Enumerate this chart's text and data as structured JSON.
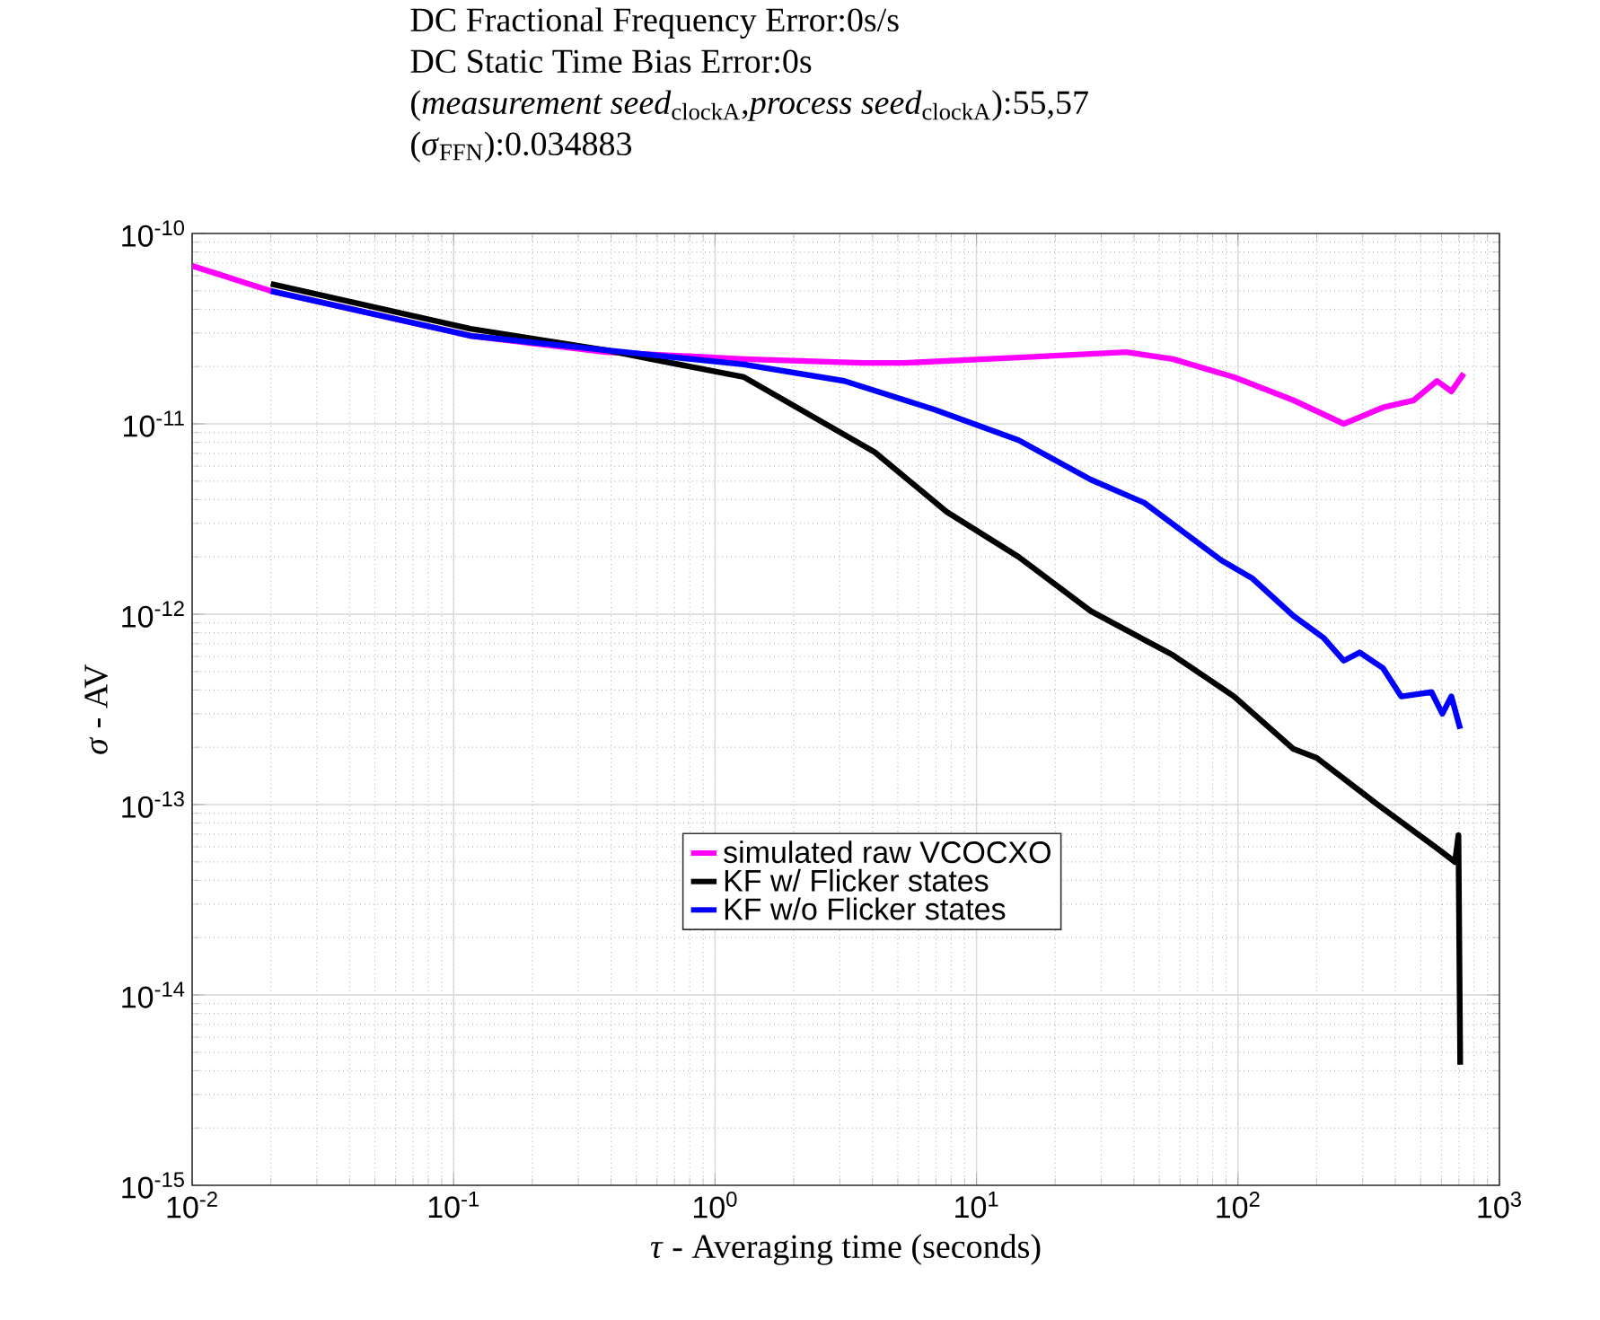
{
  "chart_data": {
    "type": "line",
    "title": "DC Fractional Frequency Error:0s/s",
    "subtitle": "DC Static Time Bias Error:0s",
    "annotations": [
      "(*measurement seed*$_{clockA}$,*process seed*$_{clockA}$):55,57",
      "(*σ*$_{FFN}$):0.034883"
    ],
    "xlabel": "*τ* - Averaging time (seconds)",
    "ylabel": "*σ* - AV",
    "log": "xy",
    "grid": true,
    "legend": "bottom",
    "xlim": [
      0.01,
      1000
    ],
    "ylim": [
      1e-15,
      1e-10
    ],
    "xticks": [
      {
        "value": 0.01,
        "label": "10$^{-2}$"
      },
      {
        "value": 0.1,
        "label": "10$^{-1}$"
      },
      {
        "value": 1,
        "label": "10$^{0}$"
      },
      {
        "value": 10,
        "label": "10$^{1}$"
      },
      {
        "value": 100,
        "label": "10$^{2}$"
      },
      {
        "value": 1000,
        "label": "10$^{3}$"
      }
    ],
    "yticks": [
      {
        "value": 1e-15,
        "label": "10$^{-15}$"
      },
      {
        "value": 1e-14,
        "label": "10$^{-14}$"
      },
      {
        "value": 1e-13,
        "label": "10$^{-13}$"
      },
      {
        "value": 1e-12,
        "label": "10$^{-12}$"
      },
      {
        "value": 1e-11,
        "label": "10$^{-11}$"
      },
      {
        "value": 1e-10,
        "label": "10$^{-10}$"
      }
    ],
    "series": [
      {
        "name": "simulated raw VCOCXO",
        "color": "#ff00ff",
        "x": [
          0.01,
          0.02,
          0.116,
          0.381,
          1.29,
          3.66,
          5.26,
          14.5,
          37.4,
          56.4,
          96.6,
          163,
          254,
          359,
          470,
          577,
          655,
          731
        ],
        "values": [
          6.76e-11,
          4.99e-11,
          2.9e-11,
          2.38e-11,
          2.19e-11,
          2.09e-11,
          2.09e-11,
          2.23e-11,
          2.38e-11,
          2.19e-11,
          1.76e-11,
          1.33e-11,
          1e-11,
          1.22e-11,
          1.33e-11,
          1.68e-11,
          1.48e-11,
          1.84e-11
        ]
      },
      {
        "name": "KF w/ Flicker states",
        "color": "#000000",
        "x": [
          0.02,
          0.116,
          0.381,
          1.29,
          4.08,
          7.69,
          14.5,
          27.3,
          56.4,
          96.6,
          163,
          200,
          342,
          577,
          676,
          697,
          708
        ],
        "values": [
          5.44e-11,
          3.16e-11,
          2.44e-11,
          1.76e-11,
          7.1e-12,
          3.45e-12,
          2e-12,
          1.04e-12,
          6.1e-13,
          3.7e-13,
          1.96e-13,
          1.76e-13,
          1e-13,
          5.9e-14,
          5e-14,
          6.9e-14,
          4.3e-15
        ]
      },
      {
        "name": "KF w/o Flicker states",
        "color": "#0000ff",
        "x": [
          0.02,
          0.116,
          0.381,
          1.29,
          3.12,
          6.89,
          14.5,
          27.3,
          43.8,
          86.4,
          113,
          163,
          213,
          254,
          292,
          359,
          421,
          550,
          605,
          655,
          708
        ],
        "values": [
          4.99e-11,
          2.9e-11,
          2.44e-11,
          2.05e-11,
          1.68e-11,
          1.19e-11,
          8.2e-12,
          5.1e-12,
          3.85e-12,
          1.92e-12,
          1.55e-12,
          9.8e-13,
          7.5e-13,
          5.7e-13,
          6.3e-13,
          5.2e-13,
          3.7e-13,
          3.9e-13,
          3e-13,
          3.7e-13,
          2.5e-13
        ]
      }
    ]
  }
}
